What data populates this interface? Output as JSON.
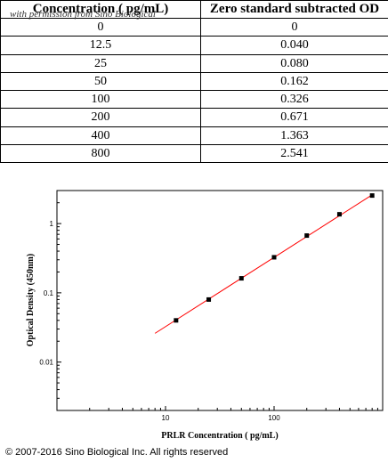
{
  "table": {
    "watermark": "with permission from Sino Biological",
    "headers": [
      "Concentration ( pg/mL)",
      "Zero standard subtracted OD"
    ],
    "rows": [
      [
        "0",
        "0"
      ],
      [
        "12.5",
        "0.040"
      ],
      [
        "25",
        "0.080"
      ],
      [
        "50",
        "0.162"
      ],
      [
        "100",
        "0.326"
      ],
      [
        "200",
        "0.671"
      ],
      [
        "400",
        "1.363"
      ],
      [
        "800",
        "2.541"
      ]
    ]
  },
  "chart_data": {
    "type": "scatter",
    "x_scale": "log",
    "y_scale": "log",
    "xlabel": "PRLR Concentration ( pg/mL)",
    "ylabel": "Optical Density (450nm)",
    "xlim": [
      1,
      1000
    ],
    "ylim": [
      0.002,
      3
    ],
    "x_ticks": [
      "10",
      "100"
    ],
    "y_ticks": [
      "0.01",
      "0.1",
      "1"
    ],
    "points": {
      "x": [
        12.5,
        25,
        50,
        100,
        200,
        400,
        800
      ],
      "y": [
        0.04,
        0.08,
        0.162,
        0.326,
        0.671,
        1.363,
        2.541
      ]
    },
    "fit_line": {
      "x": [
        8,
        800
      ],
      "y": [
        0.026,
        2.6
      ],
      "color": "#ff0000"
    },
    "marker_color": "#000000",
    "grid": false
  },
  "footer": {
    "copyright": "© 2007-2016 Sino Biological Inc. All rights reserved"
  }
}
